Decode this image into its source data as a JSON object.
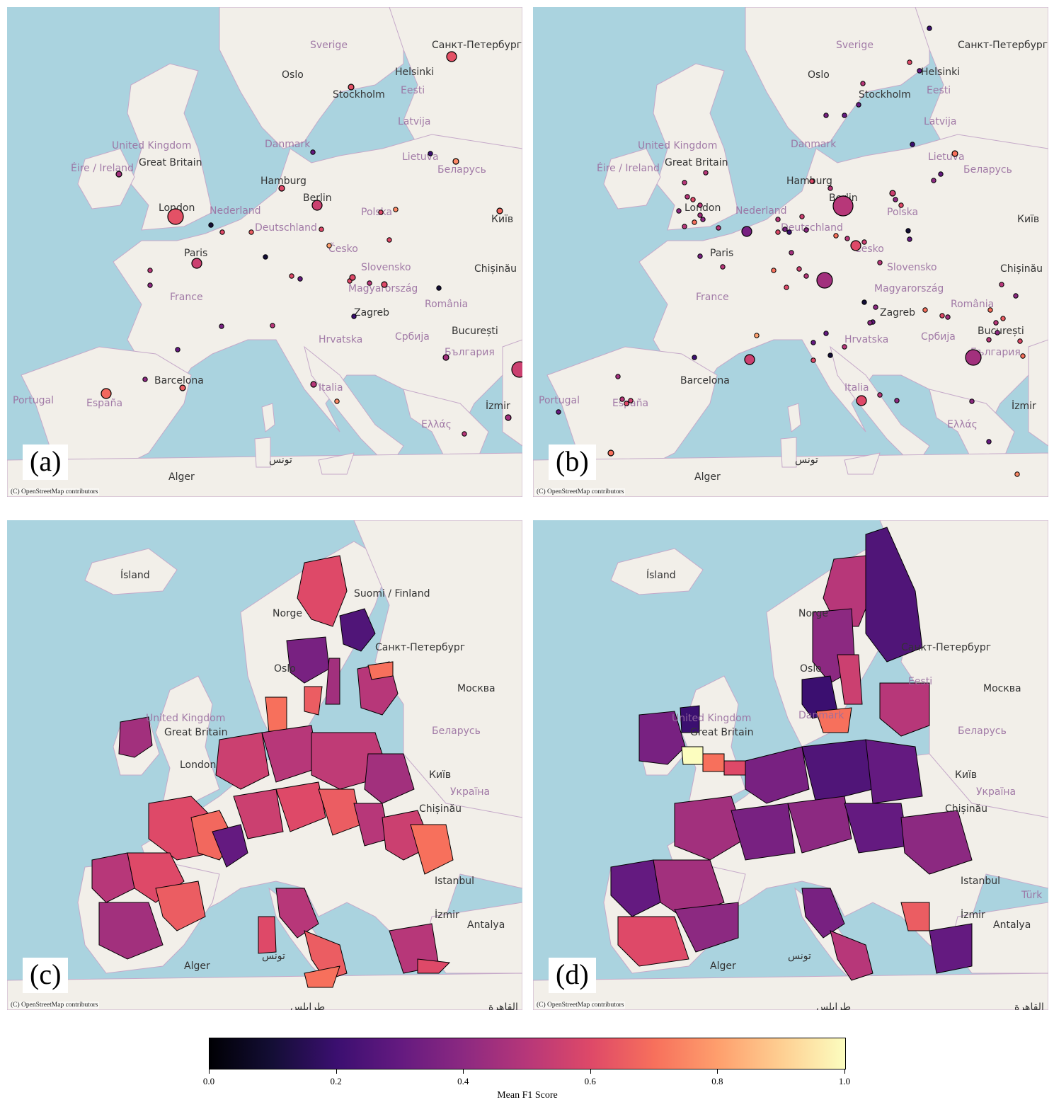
{
  "attribution": "(C) OpenStreetMap contributors",
  "colors": {
    "sea": "#aad3df",
    "land": "#f2efe9",
    "border": "#c5a9c9"
  },
  "panels": [
    {
      "id": "a",
      "label": "(a)",
      "kind": "points",
      "places": [
        {
          "name": "Sverige",
          "type": "country"
        },
        {
          "name": "Санкт-Петербург",
          "type": "city"
        },
        {
          "name": "Oslo",
          "type": "city"
        },
        {
          "name": "Helsinki",
          "type": "city"
        },
        {
          "name": "Stockholm",
          "type": "city"
        },
        {
          "name": "Eesti",
          "type": "country"
        },
        {
          "name": "Latvija",
          "type": "country"
        },
        {
          "name": "United Kingdom",
          "type": "country"
        },
        {
          "name": "Great Britain",
          "type": "city"
        },
        {
          "name": "Danmark",
          "type": "country"
        },
        {
          "name": "Lietuva",
          "type": "country"
        },
        {
          "name": "Éire / Ireland",
          "type": "country"
        },
        {
          "name": "Беларусь",
          "type": "country"
        },
        {
          "name": "Hamburg",
          "type": "city"
        },
        {
          "name": "Berlin",
          "type": "city"
        },
        {
          "name": "London",
          "type": "city"
        },
        {
          "name": "Nederland",
          "type": "country"
        },
        {
          "name": "Polska",
          "type": "country"
        },
        {
          "name": "Київ",
          "type": "city"
        },
        {
          "name": "Deutschland",
          "type": "country"
        },
        {
          "name": "Paris",
          "type": "city"
        },
        {
          "name": "Česko",
          "type": "country"
        },
        {
          "name": "Slovensko",
          "type": "country"
        },
        {
          "name": "Chișinău",
          "type": "city"
        },
        {
          "name": "France",
          "type": "country"
        },
        {
          "name": "Magyarország",
          "type": "country"
        },
        {
          "name": "Zagreb",
          "type": "city"
        },
        {
          "name": "România",
          "type": "country"
        },
        {
          "name": "Hrvatska",
          "type": "country"
        },
        {
          "name": "Србија",
          "type": "country"
        },
        {
          "name": "București",
          "type": "city"
        },
        {
          "name": "България",
          "type": "country"
        },
        {
          "name": "Barcelona",
          "type": "city"
        },
        {
          "name": "Italia",
          "type": "country"
        },
        {
          "name": "Portugal",
          "type": "country"
        },
        {
          "name": "España",
          "type": "country"
        },
        {
          "name": "İzmir",
          "type": "city"
        },
        {
          "name": "Ελλάς",
          "type": "country"
        },
        {
          "name": "تونس",
          "type": "city"
        },
        {
          "name": "Alger",
          "type": "city"
        }
      ],
      "points": [
        {
          "place": "London",
          "score": 0.62,
          "size": "large"
        },
        {
          "place": "Madrid",
          "score": 0.68,
          "size": "medium"
        },
        {
          "place": "Санкт-Петербург",
          "score": 0.62,
          "size": "medium"
        },
        {
          "place": "Istanbul",
          "score": 0.55,
          "size": "large"
        },
        {
          "place": "Berlin",
          "score": 0.55,
          "size": "medium"
        },
        {
          "place": "Paris",
          "score": 0.55,
          "size": "medium"
        },
        {
          "place": "Hamburg",
          "score": 0.6,
          "size": "small"
        },
        {
          "place": "Stockholm",
          "score": 0.62,
          "size": "small"
        },
        {
          "place": "Київ",
          "score": 0.68,
          "size": "small"
        },
        {
          "place": "Dublin",
          "score": 0.45,
          "size": "small"
        },
        {
          "place": "Barcelona",
          "score": 0.65,
          "size": "small"
        },
        {
          "place": "Roma",
          "score": 0.5,
          "size": "small"
        },
        {
          "place": "Budapest",
          "score": 0.6,
          "size": "small"
        },
        {
          "place": "Wien",
          "score": 0.6,
          "size": "small"
        },
        {
          "place": "Izmir",
          "score": 0.45,
          "size": "small"
        },
        {
          "place": "Thessaloniki",
          "score": 0.45,
          "size": "small"
        },
        {
          "place": "Minsk",
          "score": 0.75,
          "size": "small"
        }
      ]
    },
    {
      "id": "b",
      "label": "(b)",
      "kind": "points",
      "places": [
        {
          "name": "Sverige",
          "type": "country"
        },
        {
          "name": "Санкт-Петербург",
          "type": "city"
        },
        {
          "name": "Oslo",
          "type": "city"
        },
        {
          "name": "Helsinki",
          "type": "city"
        },
        {
          "name": "Stockholm",
          "type": "city"
        },
        {
          "name": "Eesti",
          "type": "country"
        },
        {
          "name": "Latvija",
          "type": "country"
        },
        {
          "name": "United Kingdom",
          "type": "country"
        },
        {
          "name": "Great Britain",
          "type": "city"
        },
        {
          "name": "Danmark",
          "type": "country"
        },
        {
          "name": "Lietuva",
          "type": "country"
        },
        {
          "name": "Éire / Ireland",
          "type": "country"
        },
        {
          "name": "Беларусь",
          "type": "country"
        },
        {
          "name": "Hamburg",
          "type": "city"
        },
        {
          "name": "Berlin",
          "type": "city"
        },
        {
          "name": "London",
          "type": "city"
        },
        {
          "name": "Nederland",
          "type": "country"
        },
        {
          "name": "Polska",
          "type": "country"
        },
        {
          "name": "Київ",
          "type": "city"
        },
        {
          "name": "Deutschland",
          "type": "country"
        },
        {
          "name": "Paris",
          "type": "city"
        },
        {
          "name": "Česko",
          "type": "country"
        },
        {
          "name": "Slovensko",
          "type": "country"
        },
        {
          "name": "Chișinău",
          "type": "city"
        },
        {
          "name": "France",
          "type": "country"
        },
        {
          "name": "Magyarország",
          "type": "country"
        },
        {
          "name": "Zagreb",
          "type": "city"
        },
        {
          "name": "România",
          "type": "country"
        },
        {
          "name": "Hrvatska",
          "type": "country"
        },
        {
          "name": "Србија",
          "type": "country"
        },
        {
          "name": "București",
          "type": "city"
        },
        {
          "name": "България",
          "type": "country"
        },
        {
          "name": "Barcelona",
          "type": "city"
        },
        {
          "name": "Italia",
          "type": "country"
        },
        {
          "name": "Portugal",
          "type": "country"
        },
        {
          "name": "España",
          "type": "country"
        },
        {
          "name": "İzmir",
          "type": "city"
        },
        {
          "name": "Ελλάς",
          "type": "country"
        },
        {
          "name": "تونس",
          "type": "city"
        },
        {
          "name": "Alger",
          "type": "city"
        }
      ],
      "points": [
        {
          "place": "Berlin",
          "score": 0.5,
          "size": "xlarge"
        },
        {
          "place": "Wien",
          "score": 0.45,
          "size": "large"
        },
        {
          "place": "Praha",
          "score": 0.6,
          "size": "medium"
        },
        {
          "place": "Marseille",
          "score": 0.55,
          "size": "medium"
        },
        {
          "place": "Sofia",
          "score": 0.45,
          "size": "large"
        },
        {
          "place": "Roma",
          "score": 0.6,
          "size": "medium"
        },
        {
          "place": "Brussels",
          "score": 0.35,
          "size": "medium"
        },
        {
          "place": "Lisboa",
          "score": 0.7,
          "size": "small"
        },
        {
          "place": "Vilnius",
          "score": 0.7,
          "size": "small"
        },
        {
          "place": "Warszawa",
          "score": 0.55,
          "size": "small"
        }
      ]
    },
    {
      "id": "c",
      "label": "(c)",
      "kind": "choropleth",
      "places": [
        {
          "name": "Ísland",
          "type": "city"
        },
        {
          "name": "Suomi / Finland",
          "type": "city"
        },
        {
          "name": "Norge",
          "type": "city"
        },
        {
          "name": "Санкт-Петербург",
          "type": "city"
        },
        {
          "name": "Oslo",
          "type": "city"
        },
        {
          "name": "Москва",
          "type": "city"
        },
        {
          "name": "United Kingdom",
          "type": "country"
        },
        {
          "name": "Great Britain",
          "type": "city"
        },
        {
          "name": "Беларусь",
          "type": "country"
        },
        {
          "name": "London",
          "type": "city"
        },
        {
          "name": "Київ",
          "type": "city"
        },
        {
          "name": "Україна",
          "type": "country"
        },
        {
          "name": "Chișinău",
          "type": "city"
        },
        {
          "name": "Istanbul",
          "type": "city"
        },
        {
          "name": "İzmir",
          "type": "city"
        },
        {
          "name": "Antalya",
          "type": "city"
        },
        {
          "name": "Alger",
          "type": "city"
        },
        {
          "name": "تونس",
          "type": "city"
        },
        {
          "name": "طرابلس",
          "type": "city"
        },
        {
          "name": "القاهرة",
          "type": "city"
        }
      ]
    },
    {
      "id": "d",
      "label": "(d)",
      "kind": "choropleth",
      "places": [
        {
          "name": "Ísland",
          "type": "city"
        },
        {
          "name": "Norge",
          "type": "city"
        },
        {
          "name": "Санкт-Петербург",
          "type": "city"
        },
        {
          "name": "Oslo",
          "type": "city"
        },
        {
          "name": "Москва",
          "type": "city"
        },
        {
          "name": "Eesti",
          "type": "country"
        },
        {
          "name": "United Kingdom",
          "type": "country"
        },
        {
          "name": "Great Britain",
          "type": "city"
        },
        {
          "name": "Danmark",
          "type": "country"
        },
        {
          "name": "Беларусь",
          "type": "country"
        },
        {
          "name": "Київ",
          "type": "city"
        },
        {
          "name": "Україна",
          "type": "country"
        },
        {
          "name": "Chișinău",
          "type": "city"
        },
        {
          "name": "Istanbul",
          "type": "city"
        },
        {
          "name": "Türk",
          "type": "country"
        },
        {
          "name": "İzmir",
          "type": "city"
        },
        {
          "name": "Antalya",
          "type": "city"
        },
        {
          "name": "Alger",
          "type": "city"
        },
        {
          "name": "تونس",
          "type": "city"
        },
        {
          "name": "طرابلس",
          "type": "city"
        },
        {
          "name": "القاهرة",
          "type": "city"
        }
      ]
    }
  ],
  "colorbar": {
    "title": "Mean F1 Score",
    "ticks": [
      "0.0",
      "0.2",
      "0.4",
      "0.6",
      "0.8",
      "1.0"
    ],
    "range": [
      0.0,
      1.0
    ],
    "colormap": "magma"
  }
}
